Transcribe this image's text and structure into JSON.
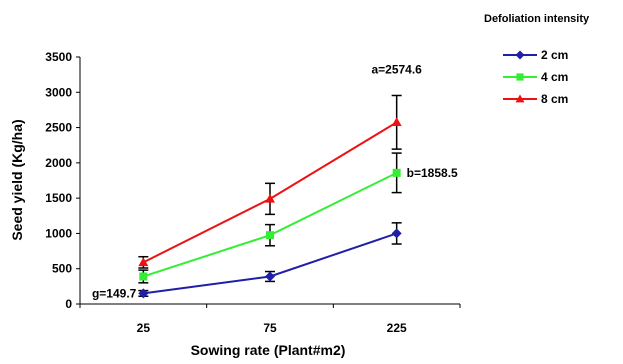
{
  "chart_data": {
    "type": "line",
    "title": "",
    "xlabel": "Sowing rate (Plant#m2)",
    "ylabel": "Seed yield (Kg/ha)",
    "ylim": [
      0,
      3500
    ],
    "yticks": [
      "0",
      "500",
      "1000",
      "1500",
      "2000",
      "2500",
      "3000",
      "3500"
    ],
    "categories": [
      "25",
      "75",
      "225"
    ],
    "grid": false,
    "legend_title": "Defoliation intensity",
    "legend_position": "top-right",
    "series": [
      {
        "name": "2 cm",
        "color": "#1f1fa8",
        "marker": "diamond-marker",
        "values": [
          150,
          390,
          1000
        ],
        "error": [
          40,
          70,
          150
        ]
      },
      {
        "name": "4 cm",
        "color": "#33ee33",
        "marker": "square-marker",
        "values": [
          390,
          975,
          1858.5
        ],
        "error": [
          90,
          150,
          280
        ]
      },
      {
        "name": "8 cm",
        "color": "#ee1111",
        "marker": "triangle-marker",
        "values": [
          590,
          1490,
          2574.6
        ],
        "error": [
          80,
          220,
          380
        ]
      }
    ],
    "annotations": [
      {
        "text": "a=2574.6",
        "series": 2,
        "point": 2
      },
      {
        "text": "b=1858.5",
        "series": 1,
        "point": 2
      },
      {
        "text": "g=149.7",
        "series": 0,
        "point": 0
      }
    ]
  }
}
